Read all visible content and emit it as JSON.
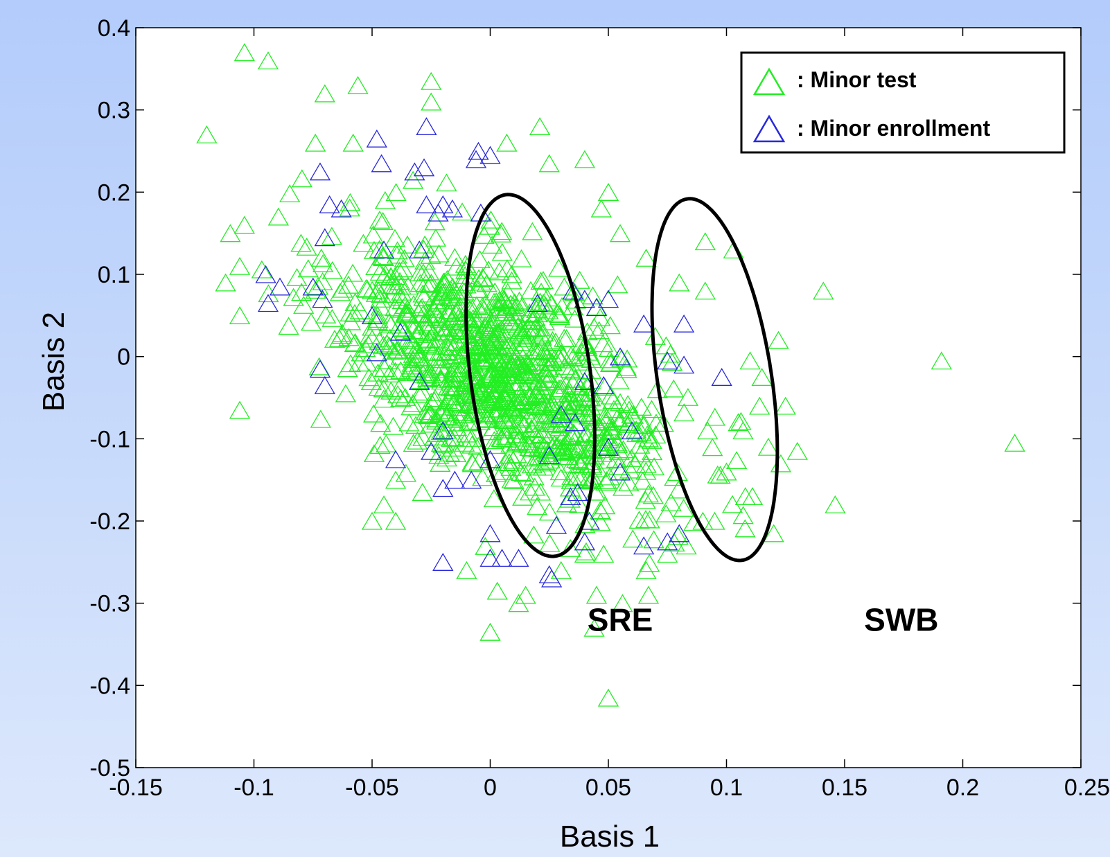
{
  "chart_data": {
    "type": "scatter",
    "xlabel": "Basis 1",
    "ylabel": "Basis 2",
    "xlim": [
      -0.15,
      0.25
    ],
    "ylim": [
      -0.5,
      0.4
    ],
    "xticks": [
      -0.15,
      -0.1,
      -0.05,
      0,
      0.05,
      0.1,
      0.15,
      0.2,
      0.25
    ],
    "yticks": [
      -0.5,
      -0.4,
      -0.3,
      -0.2,
      -0.1,
      0,
      0.1,
      0.2,
      0.3,
      0.4
    ],
    "xtick_labels": [
      "-0.15",
      "-0.1",
      "-0.05",
      "0",
      "0.05",
      "0.1",
      "0.15",
      "0.2",
      "0.25"
    ],
    "ytick_labels": [
      "-0.5",
      "-0.4",
      "-0.3",
      "-0.2",
      "-0.1",
      "0",
      "0.1",
      "0.2",
      "0.3",
      "0.4"
    ],
    "grid": false,
    "legend_position": "top-right",
    "marker": "open-triangle",
    "series": [
      {
        "name": ": Minor test",
        "color": "#22ee22",
        "cluster": {
          "center": [
            0.005,
            -0.02
          ],
          "spread": [
            0.035,
            0.08
          ],
          "correlation": -0.55,
          "count": 1100
        },
        "points": [
          [
            -0.104,
            0.37
          ],
          [
            -0.12,
            0.27
          ],
          [
            -0.094,
            0.36
          ],
          [
            -0.07,
            0.32
          ],
          [
            -0.056,
            0.33
          ],
          [
            -0.025,
            0.335
          ],
          [
            -0.025,
            0.31
          ],
          [
            -0.074,
            0.26
          ],
          [
            -0.058,
            0.26
          ],
          [
            0.007,
            0.26
          ],
          [
            0.021,
            0.28
          ],
          [
            0.04,
            0.24
          ],
          [
            0.025,
            0.235
          ],
          [
            -0.11,
            0.15
          ],
          [
            -0.104,
            0.16
          ],
          [
            -0.112,
            0.09
          ],
          [
            -0.106,
            0.11
          ],
          [
            -0.106,
            0.05
          ],
          [
            -0.106,
            -0.065
          ],
          [
            0.05,
            0.2
          ],
          [
            0.047,
            0.18
          ],
          [
            0.055,
            0.15
          ],
          [
            0.066,
            0.12
          ],
          [
            0.091,
            0.14
          ],
          [
            0.103,
            0.13
          ],
          [
            0.08,
            0.09
          ],
          [
            0.091,
            0.08
          ],
          [
            0.141,
            0.08
          ],
          [
            0.122,
            0.02
          ],
          [
            0.11,
            -0.005
          ],
          [
            0.115,
            -0.025
          ],
          [
            0.114,
            -0.06
          ],
          [
            0.125,
            -0.06
          ],
          [
            0.107,
            -0.09
          ],
          [
            0.13,
            -0.115
          ],
          [
            0.123,
            -0.13
          ],
          [
            0.191,
            -0.005
          ],
          [
            0.222,
            -0.105
          ],
          [
            0.146,
            -0.18
          ],
          [
            0.12,
            -0.215
          ],
          [
            0.111,
            -0.17
          ],
          [
            0.108,
            -0.17
          ],
          [
            0.095,
            -0.2
          ],
          [
            0.09,
            -0.2
          ],
          [
            0.1,
            -0.14
          ],
          [
            0.105,
            -0.08
          ],
          [
            0.092,
            -0.09
          ],
          [
            0.045,
            -0.29
          ],
          [
            0.056,
            -0.3
          ],
          [
            0.067,
            -0.29
          ],
          [
            0.015,
            -0.29
          ],
          [
            0.012,
            -0.3
          ],
          [
            0.003,
            -0.285
          ],
          [
            0.0,
            -0.335
          ],
          [
            0.044,
            -0.33
          ],
          [
            0.05,
            -0.415
          ],
          [
            -0.01,
            -0.26
          ],
          [
            0.03,
            -0.26
          ],
          [
            0.04,
            -0.24
          ],
          [
            0.048,
            -0.24
          ],
          [
            -0.05,
            -0.2
          ],
          [
            -0.04,
            -0.2
          ],
          [
            -0.045,
            -0.18
          ],
          [
            -0.04,
            -0.15
          ],
          [
            0.066,
            -0.26
          ],
          [
            0.083,
            -0.23
          ],
          [
            0.075,
            -0.24
          ]
        ]
      },
      {
        "name": ": Minor enrollment",
        "color": "#2828dd",
        "points": [
          [
            -0.095,
            0.1
          ],
          [
            -0.094,
            0.065
          ],
          [
            -0.089,
            0.085
          ],
          [
            -0.075,
            0.085
          ],
          [
            -0.072,
            0.225
          ],
          [
            -0.068,
            0.185
          ],
          [
            -0.063,
            0.18
          ],
          [
            -0.07,
            0.145
          ],
          [
            -0.071,
            0.07
          ],
          [
            -0.072,
            -0.015
          ],
          [
            -0.07,
            -0.035
          ],
          [
            -0.048,
            0.265
          ],
          [
            -0.046,
            0.235
          ],
          [
            -0.032,
            0.225
          ],
          [
            -0.028,
            0.23
          ],
          [
            -0.027,
            0.28
          ],
          [
            -0.027,
            0.185
          ],
          [
            -0.022,
            0.175
          ],
          [
            -0.016,
            0.18
          ],
          [
            -0.005,
            0.25
          ],
          [
            -0.006,
            0.24
          ],
          [
            0.0,
            0.245
          ],
          [
            -0.02,
            0.185
          ],
          [
            -0.004,
            0.175
          ],
          [
            -0.03,
            0.13
          ],
          [
            -0.045,
            0.13
          ],
          [
            -0.05,
            0.05
          ],
          [
            -0.038,
            0.03
          ],
          [
            -0.048,
            0.005
          ],
          [
            -0.03,
            -0.03
          ],
          [
            0.05,
            0.07
          ],
          [
            0.045,
            0.06
          ],
          [
            0.04,
            0.07
          ],
          [
            0.02,
            0.065
          ],
          [
            0.035,
            0.08
          ],
          [
            0.082,
            0.04
          ],
          [
            0.075,
            -0.005
          ],
          [
            0.098,
            -0.025
          ],
          [
            0.082,
            -0.01
          ],
          [
            0.065,
            0.04
          ],
          [
            0.055,
            0.0
          ],
          [
            0.048,
            -0.035
          ],
          [
            0.04,
            -0.03
          ],
          [
            0.036,
            -0.08
          ],
          [
            0.03,
            -0.07
          ],
          [
            0.025,
            -0.12
          ],
          [
            0.0,
            -0.125
          ],
          [
            -0.025,
            -0.115
          ],
          [
            -0.02,
            -0.09
          ],
          [
            -0.04,
            -0.125
          ],
          [
            -0.015,
            -0.15
          ],
          [
            -0.02,
            -0.16
          ],
          [
            -0.008,
            -0.15
          ],
          [
            0.06,
            -0.09
          ],
          [
            0.05,
            -0.11
          ],
          [
            0.055,
            -0.14
          ],
          [
            0.034,
            -0.17
          ],
          [
            0.037,
            -0.165
          ],
          [
            0.042,
            -0.2
          ],
          [
            0.04,
            -0.225
          ],
          [
            0.065,
            -0.23
          ],
          [
            0.075,
            -0.225
          ],
          [
            0.08,
            -0.215
          ],
          [
            0.028,
            -0.205
          ],
          [
            0.0,
            -0.215
          ],
          [
            0.0,
            -0.245
          ],
          [
            0.005,
            -0.245
          ],
          [
            0.012,
            -0.245
          ],
          [
            -0.02,
            -0.25
          ],
          [
            0.025,
            -0.265
          ],
          [
            0.026,
            -0.27
          ]
        ]
      }
    ],
    "ellipses": [
      {
        "label": "SRE",
        "center": [
          0.017,
          -0.023
        ],
        "semi_axes": [
          0.14,
          0.208
        ],
        "tilt_deg": 32
      },
      {
        "label": "SWB",
        "center": [
          0.095,
          -0.028
        ],
        "semi_axes": [
          0.132,
          0.21
        ],
        "tilt_deg": 32
      }
    ],
    "annotations": [
      {
        "text": "SRE",
        "x": 0.055,
        "y": -0.32
      },
      {
        "text": "SWB",
        "x": 0.174,
        "y": -0.32
      }
    ]
  }
}
